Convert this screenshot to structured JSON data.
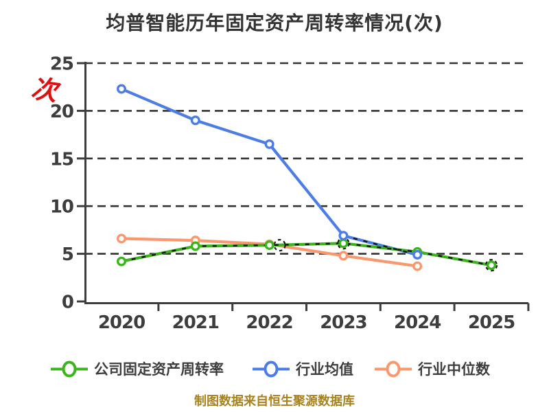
{
  "title": "均普智能历年固定资产周转率情况(次)",
  "y_axis_unit_label": "次",
  "caption": "制图数据来自恒生聚源数据库",
  "palette": {
    "title_text": "#333333",
    "axis_and_text": "#3d3d3d",
    "gridline": "#333333",
    "marker_fill": "#ffffff",
    "unit_label_red": "#de1010",
    "caption_gold": "#a8821c",
    "series_green": "#3cb41e",
    "series_blue": "#4c7de6",
    "series_orange": "#fa976c",
    "overlay_black": "#161616"
  },
  "chart_data": {
    "type": "line",
    "title": "均普智能历年固定资产周转率情况(次)",
    "categories": [
      "2020",
      "2021",
      "2022",
      "2023",
      "2024",
      "2025"
    ],
    "y_ticks": [
      0,
      5,
      10,
      15,
      20,
      25
    ],
    "ylim": [
      0,
      25
    ],
    "grid": "horizontal-dashed",
    "legend_position": "bottom",
    "series": [
      {
        "name": "公司固定资产周转率",
        "color": "#3cb41e",
        "marker": "open-circle",
        "line_overlay": "black-dashed",
        "values": [
          4.2,
          5.8,
          5.9,
          6.1,
          5.2,
          3.8
        ]
      },
      {
        "name": "行业均值",
        "color": "#4c7de6",
        "marker": "open-circle",
        "line_overlay": "black-dashed-last-segment",
        "values": [
          22.3,
          19.0,
          16.5,
          6.9,
          4.9,
          null
        ]
      },
      {
        "name": "行业中位数",
        "color": "#fa976c",
        "marker": "open-circle",
        "line_overlay": "none",
        "values": [
          6.6,
          6.4,
          6.0,
          4.8,
          3.7,
          null
        ]
      }
    ]
  }
}
